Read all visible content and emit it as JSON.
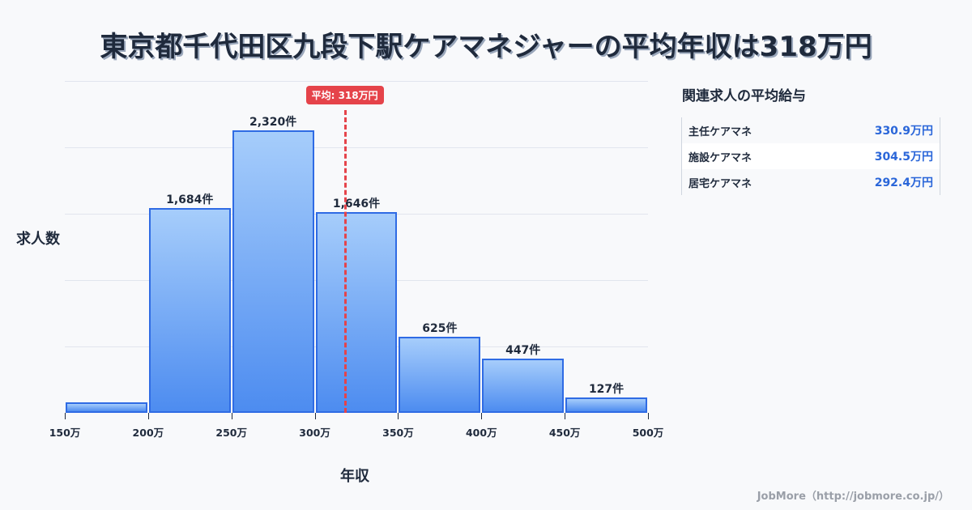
{
  "title": "東京都千代田区九段下駅ケアマネジャーの平均年収は318万円",
  "axes": {
    "ylabel": "求人数",
    "xlabel": "年収"
  },
  "average": {
    "label": "平均: 318万円",
    "value": 318,
    "color": "#e5434a"
  },
  "chart_data": {
    "type": "bar",
    "title": "東京都千代田区九段下駅ケアマネジャーの平均年収は318万円",
    "xlabel": "年収",
    "ylabel": "求人数",
    "categories": [
      "150-200万",
      "200-250万",
      "250-300万",
      "300-350万",
      "350-400万",
      "400-450万",
      "450-500万"
    ],
    "values": [
      86,
      1684,
      2320,
      1646,
      625,
      447,
      127
    ],
    "labels": [
      "",
      "1,684件",
      "2,320件",
      "1,646件",
      "625件",
      "447件",
      "127件"
    ],
    "x_ticks": [
      "150万",
      "200万",
      "250万",
      "300万",
      "350万",
      "400万",
      "450万",
      "500万"
    ],
    "ylim": [
      0,
      2726
    ],
    "grid": true,
    "average_line": 318,
    "bar_color": "#4d8cf0",
    "bar_border": "#2f6be4"
  },
  "side": {
    "title": "関連求人の平均給与",
    "rows": [
      {
        "name": "主任ケアマネ",
        "value": "330.9万円"
      },
      {
        "name": "施設ケアマネ",
        "value": "304.5万円"
      },
      {
        "name": "居宅ケアマネ",
        "value": "292.4万円"
      }
    ]
  },
  "credit": "JobMore（http://jobmore.co.jp/）"
}
